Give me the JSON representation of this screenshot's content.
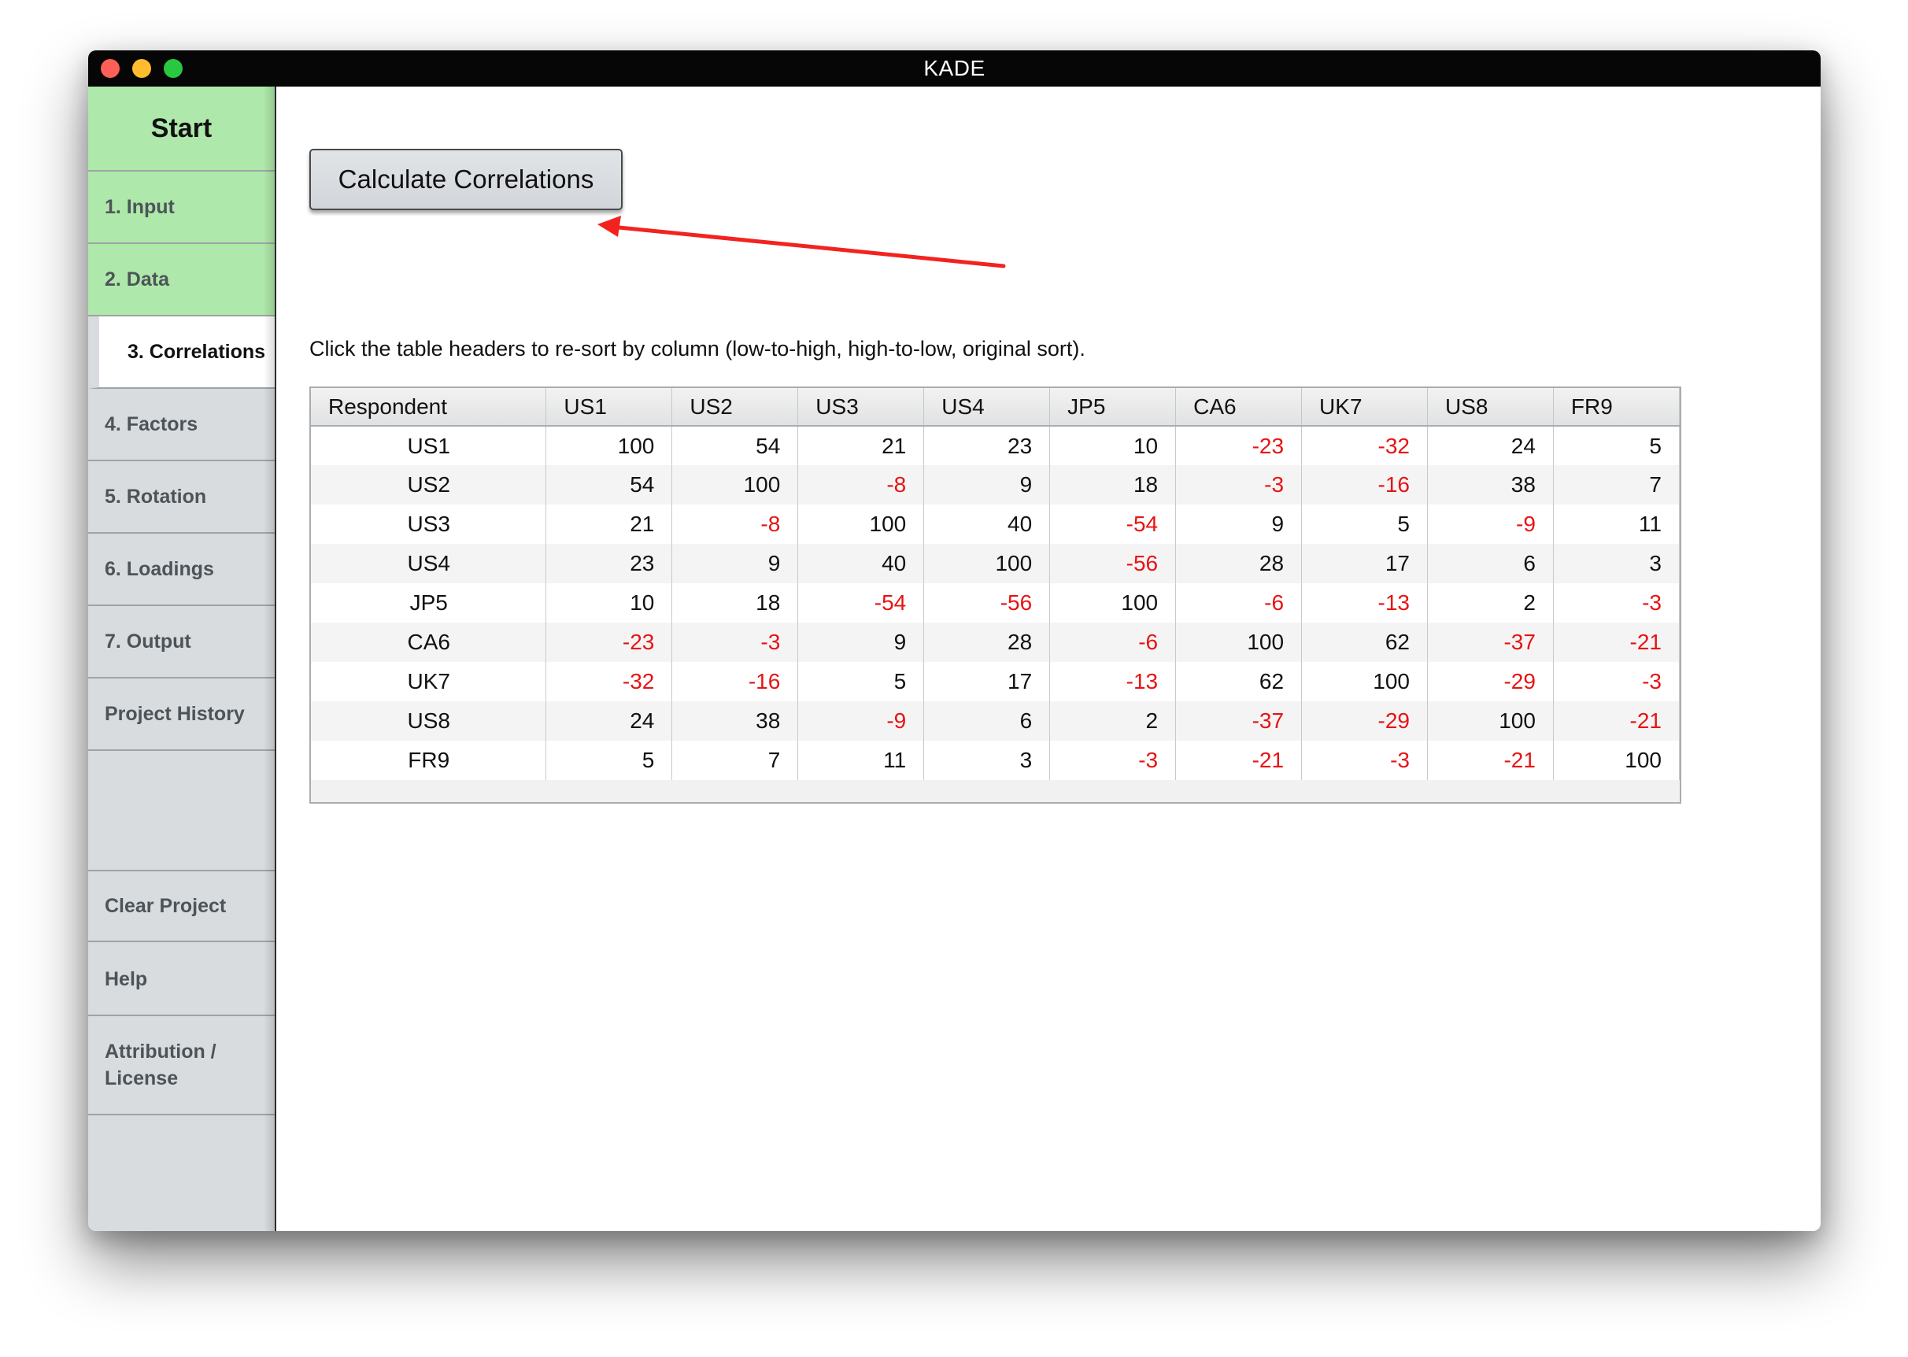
{
  "window": {
    "title": "KADE"
  },
  "sidebar": {
    "start_label": "Start",
    "items": [
      {
        "label": "1. Input",
        "state": "done"
      },
      {
        "label": "2. Data",
        "state": "done"
      },
      {
        "label": "3. Correlations",
        "state": "active"
      },
      {
        "label": "4. Factors",
        "state": "normal"
      },
      {
        "label": "5. Rotation",
        "state": "normal"
      },
      {
        "label": "6. Loadings",
        "state": "normal"
      },
      {
        "label": "7. Output",
        "state": "normal"
      },
      {
        "label": "Project History",
        "state": "normal"
      }
    ],
    "bottom_items": [
      {
        "label": "Clear Project"
      },
      {
        "label": "Help"
      },
      {
        "label": "Attribution / License"
      }
    ]
  },
  "main": {
    "calculate_button_label": "Calculate Correlations",
    "instruction": "Click the table headers to re-sort by column (low-to-high, high-to-low, original sort)."
  },
  "colors": {
    "done_green": "#aee8aa",
    "sidebar_gray": "#d8dcdf",
    "negative_red": "#e81313",
    "annotation_arrow": "#f2231f"
  },
  "table": {
    "headers": [
      "Respondent",
      "US1",
      "US2",
      "US3",
      "US4",
      "JP5",
      "CA6",
      "UK7",
      "US8",
      "FR9"
    ],
    "rows": [
      {
        "respondent": "US1",
        "values": [
          "100",
          "54",
          "21",
          "23",
          "10",
          "-23",
          "-32",
          "24",
          "5"
        ]
      },
      {
        "respondent": "US2",
        "values": [
          "54",
          "100",
          "-8",
          "9",
          "18",
          "-3",
          "-16",
          "38",
          "7"
        ]
      },
      {
        "respondent": "US3",
        "values": [
          "21",
          "-8",
          "100",
          "40",
          "-54",
          "9",
          "5",
          "-9",
          "11"
        ]
      },
      {
        "respondent": "US4",
        "values": [
          "23",
          "9",
          "40",
          "100",
          "-56",
          "28",
          "17",
          "6",
          "3"
        ]
      },
      {
        "respondent": "JP5",
        "values": [
          "10",
          "18",
          "-54",
          "-56",
          "100",
          "-6",
          "-13",
          "2",
          "-3"
        ]
      },
      {
        "respondent": "CA6",
        "values": [
          "-23",
          "-3",
          "9",
          "28",
          "-6",
          "100",
          "62",
          "-37",
          "-21"
        ]
      },
      {
        "respondent": "UK7",
        "values": [
          "-32",
          "-16",
          "5",
          "17",
          "-13",
          "62",
          "100",
          "-29",
          "-3"
        ]
      },
      {
        "respondent": "US8",
        "values": [
          "24",
          "38",
          "-9",
          "6",
          "2",
          "-37",
          "-29",
          "100",
          "-21"
        ]
      },
      {
        "respondent": "FR9",
        "values": [
          "5",
          "7",
          "11",
          "3",
          "-3",
          "-21",
          "-3",
          "-21",
          "100"
        ]
      }
    ]
  }
}
